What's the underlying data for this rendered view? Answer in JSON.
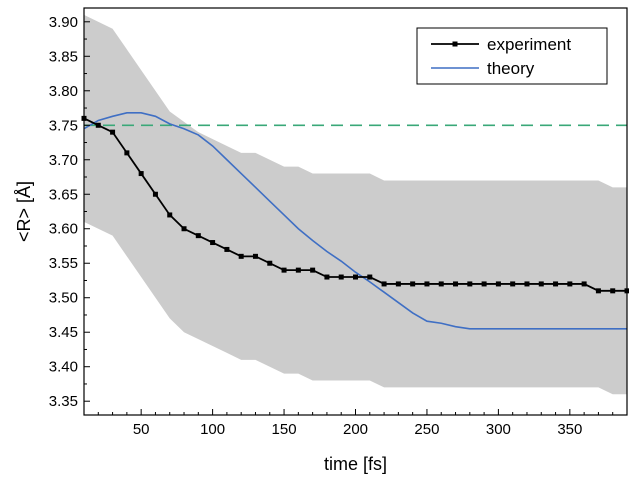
{
  "chart_data": {
    "type": "line",
    "xlabel": "time [fs]",
    "ylabel": "<R> [Å]",
    "xlim": [
      10,
      390
    ],
    "ylim": [
      3.33,
      3.92
    ],
    "x_ticks": [
      50,
      100,
      150,
      200,
      250,
      300,
      350
    ],
    "y_ticks": [
      3.35,
      3.4,
      3.45,
      3.5,
      3.55,
      3.6,
      3.65,
      3.7,
      3.75,
      3.8,
      3.85,
      3.9
    ],
    "grid": false,
    "legend": {
      "placement": "top-right",
      "entries": [
        "experiment",
        "theory"
      ]
    },
    "reference_line": {
      "y": 3.75,
      "style": "dashed",
      "color": "#3aa878"
    },
    "band": {
      "color": "#cccccc",
      "upper": [
        [
          10,
          3.91
        ],
        [
          30,
          3.89
        ],
        [
          50,
          3.83
        ],
        [
          70,
          3.77
        ],
        [
          90,
          3.74
        ],
        [
          110,
          3.72
        ],
        [
          120,
          3.71
        ],
        [
          130,
          3.71
        ],
        [
          150,
          3.69
        ],
        [
          160,
          3.69
        ],
        [
          170,
          3.68
        ],
        [
          210,
          3.68
        ],
        [
          220,
          3.67
        ],
        [
          370,
          3.67
        ],
        [
          380,
          3.66
        ],
        [
          390,
          3.66
        ]
      ],
      "lower": [
        [
          10,
          3.61
        ],
        [
          30,
          3.59
        ],
        [
          50,
          3.53
        ],
        [
          70,
          3.47
        ],
        [
          80,
          3.45
        ],
        [
          110,
          3.42
        ],
        [
          120,
          3.41
        ],
        [
          130,
          3.41
        ],
        [
          150,
          3.39
        ],
        [
          160,
          3.39
        ],
        [
          170,
          3.38
        ],
        [
          210,
          3.38
        ],
        [
          220,
          3.37
        ],
        [
          370,
          3.37
        ],
        [
          380,
          3.36
        ],
        [
          390,
          3.36
        ]
      ]
    },
    "series": [
      {
        "name": "experiment",
        "color": "#000000",
        "marker": "square",
        "x": [
          10,
          20,
          30,
          40,
          50,
          60,
          70,
          80,
          90,
          100,
          110,
          120,
          130,
          140,
          150,
          160,
          170,
          180,
          190,
          200,
          210,
          220,
          230,
          240,
          250,
          260,
          270,
          280,
          290,
          300,
          310,
          320,
          330,
          340,
          350,
          360,
          370,
          380,
          390
        ],
        "y": [
          3.76,
          3.75,
          3.74,
          3.71,
          3.68,
          3.65,
          3.62,
          3.6,
          3.59,
          3.58,
          3.57,
          3.56,
          3.56,
          3.55,
          3.54,
          3.54,
          3.54,
          3.53,
          3.53,
          3.53,
          3.53,
          3.52,
          3.52,
          3.52,
          3.52,
          3.52,
          3.52,
          3.52,
          3.52,
          3.52,
          3.52,
          3.52,
          3.52,
          3.52,
          3.52,
          3.52,
          3.51,
          3.51,
          3.51
        ]
      },
      {
        "name": "theory",
        "color": "#3f6fc4",
        "marker": "none",
        "x": [
          10,
          20,
          30,
          40,
          50,
          60,
          70,
          80,
          90,
          100,
          110,
          120,
          130,
          140,
          150,
          160,
          170,
          180,
          190,
          200,
          210,
          220,
          230,
          240,
          250,
          260,
          270,
          280,
          290,
          300,
          320,
          340,
          360,
          390
        ],
        "y": [
          3.745,
          3.757,
          3.763,
          3.768,
          3.768,
          3.763,
          3.752,
          3.745,
          3.736,
          3.72,
          3.7,
          3.68,
          3.66,
          3.64,
          3.62,
          3.6,
          3.583,
          3.567,
          3.553,
          3.537,
          3.523,
          3.508,
          3.493,
          3.478,
          3.466,
          3.463,
          3.458,
          3.455,
          3.455,
          3.455,
          3.455,
          3.455,
          3.455,
          3.455
        ]
      }
    ]
  }
}
